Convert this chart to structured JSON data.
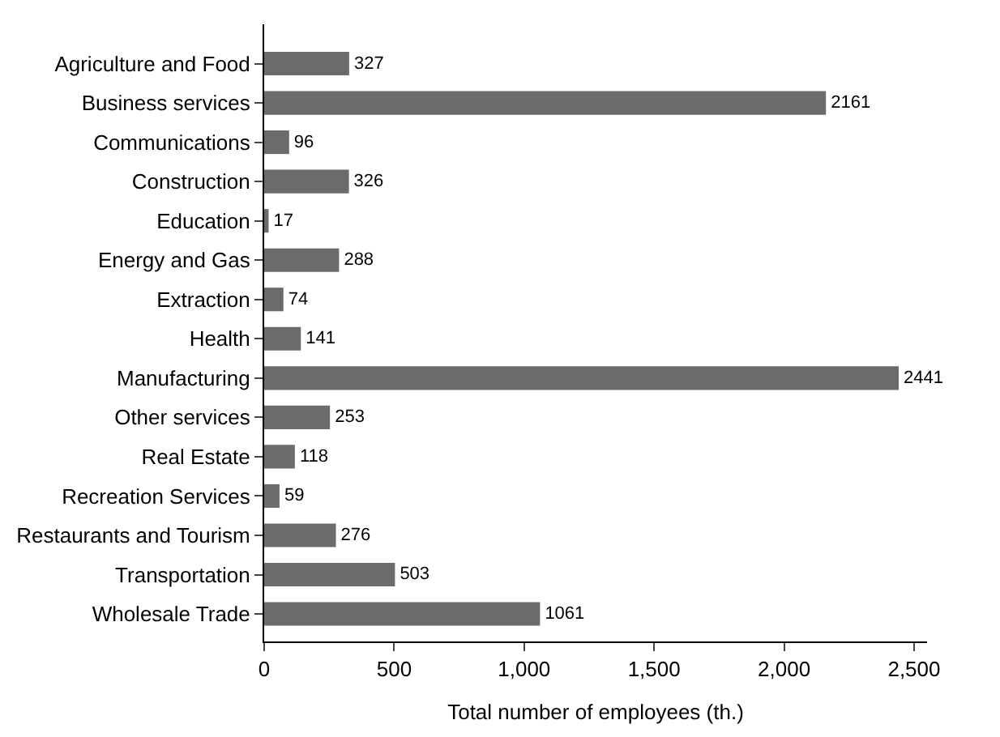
{
  "chart_data": {
    "type": "bar",
    "orientation": "horizontal",
    "xlabel": "Total number of employees (th.)",
    "categories": [
      "Agriculture and Food",
      "Business services",
      "Communications",
      "Construction",
      "Education",
      "Energy and Gas",
      "Extraction",
      "Health",
      "Manufacturing",
      "Other services",
      "Real Estate",
      "Recreation Services",
      "Restaurants and Tourism",
      "Transportation",
      "Wholesale Trade"
    ],
    "values": [
      327,
      2161,
      96,
      326,
      17,
      288,
      74,
      141,
      2441,
      253,
      118,
      59,
      276,
      503,
      1061
    ],
    "color": "#6b6b6b",
    "data_labels": true,
    "legend": false,
    "xlim": [
      0,
      2550
    ],
    "xticks": [
      0,
      {
        "value": 500,
        "label": "500"
      },
      {
        "value": 1000,
        "label": "1,000"
      },
      {
        "value": 1500,
        "label": "1,500"
      },
      {
        "value": 2000,
        "label": "2,000"
      },
      {
        "value": 2500,
        "label": "2,500"
      }
    ]
  }
}
